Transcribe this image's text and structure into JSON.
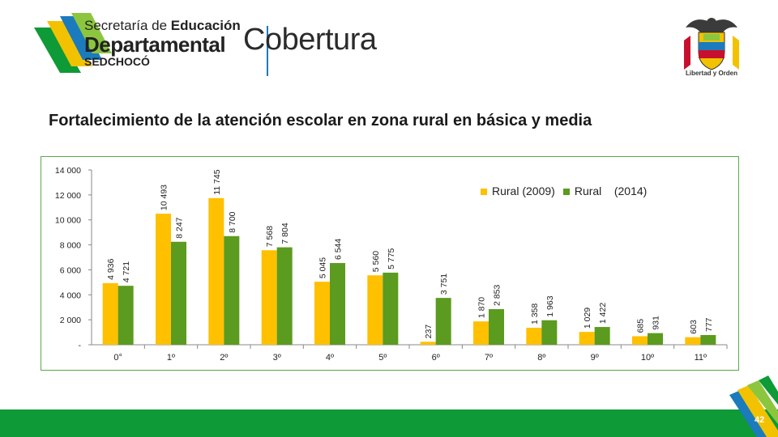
{
  "header": {
    "logo_line1_prefix": "Secretaría de ",
    "logo_line1_bold": "Educación",
    "logo_line2": "Departamental",
    "logo_line3": "SEDCHOCÓ",
    "section": "Cobertura",
    "crest_caption": "Libertad y Orden"
  },
  "slide": {
    "title": "Fortalecimiento de la atención escolar en zona rural en básica y media",
    "page_number": "42"
  },
  "colors": {
    "series_2009": "#ffc000",
    "series_2014": "#5b9b1f",
    "footer_green": "#0e9a36",
    "frame_green": "#5aa84a"
  },
  "chart_data": {
    "type": "bar",
    "categories": [
      "0°",
      "1º",
      "2º",
      "3º",
      "4º",
      "5º",
      "6º",
      "7º",
      "8º",
      "9º",
      "10º",
      "11º"
    ],
    "series": [
      {
        "name": "Rural (2009)",
        "values": [
          4936,
          10493,
          11745,
          7568,
          5045,
          5560,
          237,
          1870,
          1358,
          1029,
          685,
          603
        ],
        "labels": [
          "4 936",
          "10 493",
          "11 745",
          "7 568",
          "5 045",
          "5 560",
          "237",
          "1 870",
          "1 358",
          "1 029",
          "685",
          "603"
        ]
      },
      {
        "name": "Rural (2014)",
        "values": [
          4721,
          8247,
          8700,
          7804,
          6544,
          5775,
          3751,
          2853,
          1963,
          1422,
          931,
          777
        ],
        "labels": [
          "4 721",
          "8 247",
          "8 700",
          "7 804",
          "6 544",
          "5 775",
          "3 751",
          "2 853",
          "1 963",
          "1 422",
          "931",
          "777"
        ]
      }
    ],
    "legend_labels": {
      "first": "Rural (2009)",
      "second_a": "Rural",
      "second_b": "(2014)"
    },
    "ylim": [
      0,
      14000
    ],
    "yticks": [
      0,
      2000,
      4000,
      6000,
      8000,
      10000,
      12000,
      14000
    ],
    "ytick_labels": [
      "-",
      "2 000",
      "4 000",
      "6 000",
      "8 000",
      "10 000",
      "12 000",
      "14 000"
    ],
    "grid": false,
    "legend_position": "top-right"
  }
}
